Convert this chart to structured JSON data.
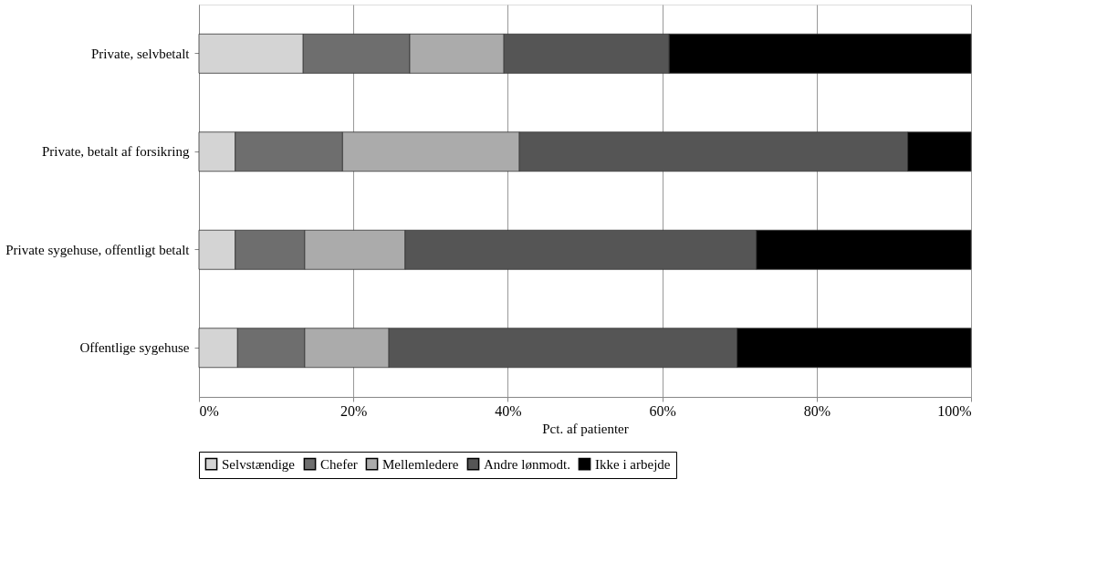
{
  "chart_data": {
    "type": "bar",
    "orientation": "horizontal",
    "stacked": true,
    "categories": [
      "Private, selvbetalt",
      "Private, betalt af forsikring",
      "Private sygehuse, offentligt betalt",
      "Offentlige sygehuse"
    ],
    "series": [
      {
        "name": "Selvstændige",
        "color": "#d4d4d4",
        "values": [
          13.5,
          4.7,
          4.7,
          5.0
        ]
      },
      {
        "name": "Chefer",
        "color": "#6e6e6e",
        "values": [
          13.8,
          13.9,
          9.0,
          8.7
        ]
      },
      {
        "name": "Mellemledere",
        "color": "#ababab",
        "values": [
          12.2,
          22.9,
          13.0,
          10.9
        ]
      },
      {
        "name": "Andre lønmodt.",
        "color": "#555555",
        "values": [
          21.4,
          50.3,
          45.5,
          45.1
        ]
      },
      {
        "name": "Ikke i arbejde",
        "color": "#000000",
        "values": [
          39.1,
          8.2,
          27.8,
          30.3
        ]
      }
    ],
    "xlabel": "Pct. af patienter",
    "xlim": [
      0,
      100
    ],
    "xticks": [
      {
        "value": 0,
        "label": "0%"
      },
      {
        "value": 20,
        "label": "20%"
      },
      {
        "value": 40,
        "label": "40%"
      },
      {
        "value": 60,
        "label": "60%"
      },
      {
        "value": 80,
        "label": "80%"
      },
      {
        "value": 100,
        "label": "100%"
      }
    ],
    "grid": "x",
    "legend": "bottom"
  }
}
